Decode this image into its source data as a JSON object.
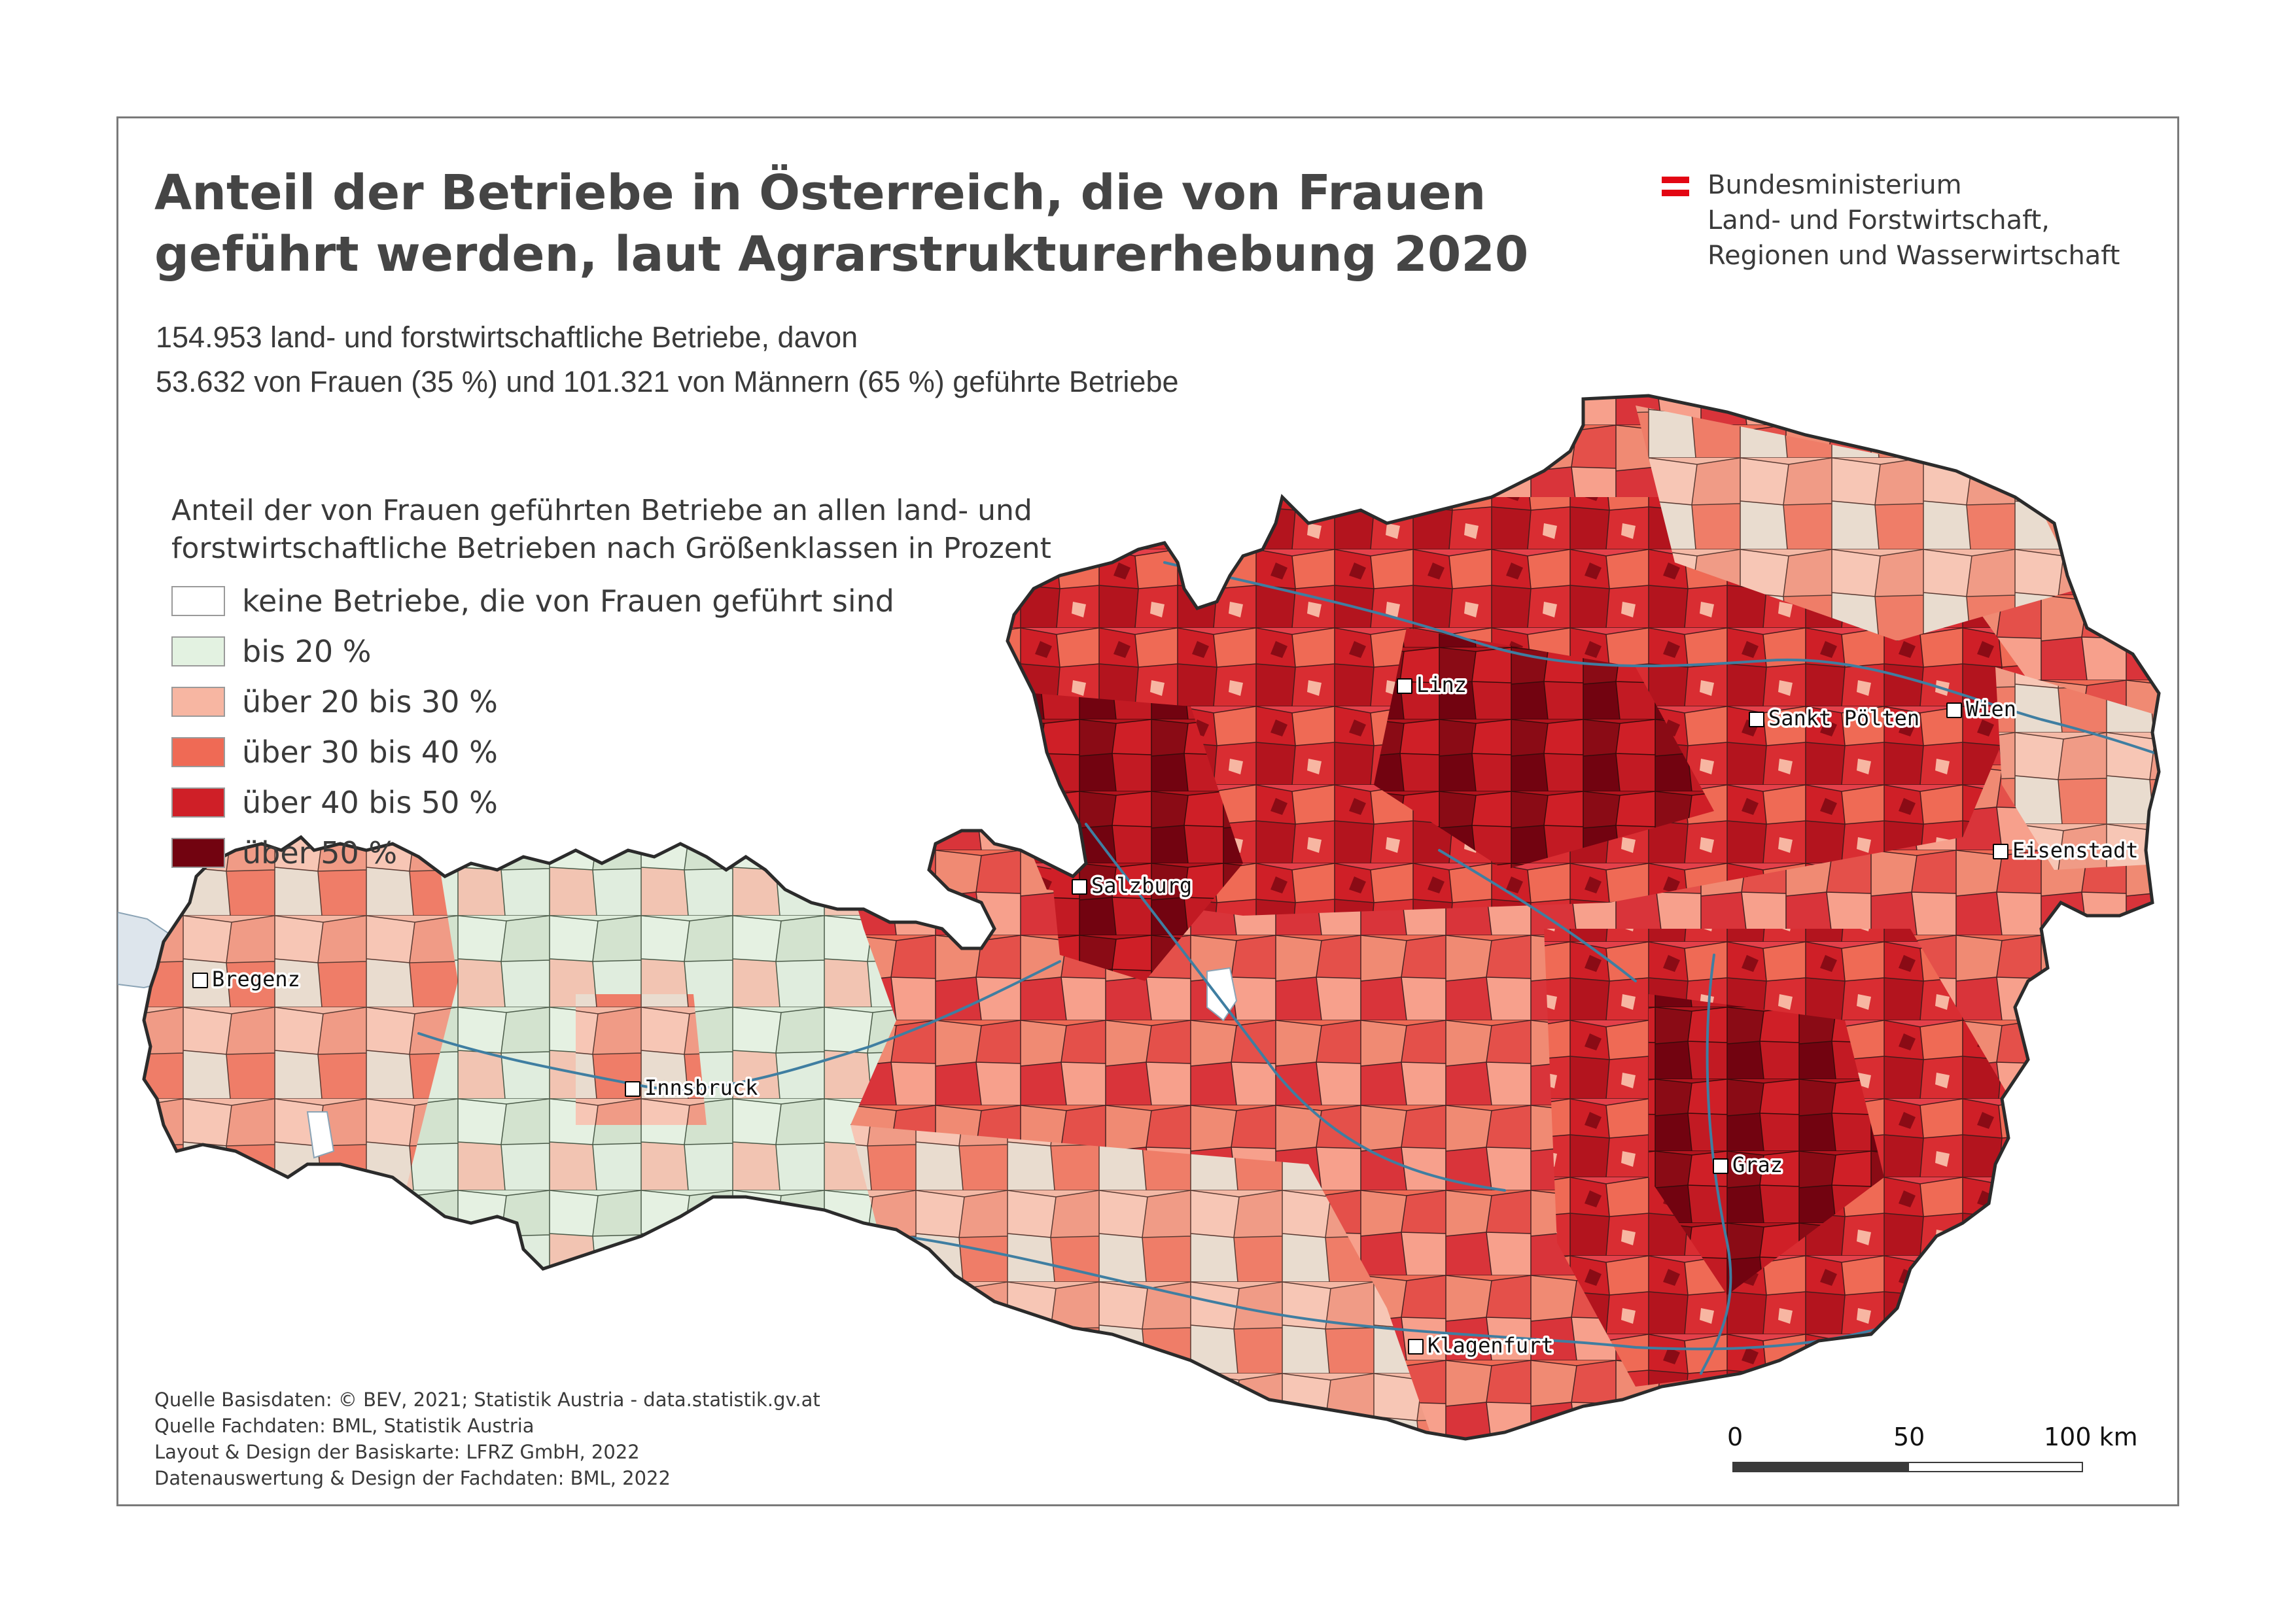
{
  "title_lines": [
    "Anteil der Betriebe in Österreich, die von Frauen",
    "geführt werden, laut Agrarstrukturerhebung 2020"
  ],
  "subtitle_lines": [
    "154.953 land- und forstwirtschaftliche Betriebe, davon",
    "53.632 von Frauen (35 %) und 101.321 von Männern (65 %) geführte Betriebe"
  ],
  "ministry": {
    "lines": [
      "Bundesministerium",
      "Land- und Forstwirtschaft,",
      "Regionen und Wasserwirtschaft"
    ],
    "flag_colors": [
      "#e30613",
      "#ffffff",
      "#e30613"
    ]
  },
  "legend": {
    "title_lines": [
      "Anteil der von Frauen geführten Betriebe an allen land- und",
      "forstwirtschaftliche Betrieben nach Größenklassen in Prozent"
    ],
    "classes": [
      {
        "label": "keine Betriebe, die von Frauen geführt sind",
        "color": "#ffffff"
      },
      {
        "label": "bis 20 %",
        "color": "#e3f2e1"
      },
      {
        "label": "über 20 bis 30 %",
        "color": "#f7b6a2"
      },
      {
        "label": "über 30 bis 40 %",
        "color": "#ef6a55"
      },
      {
        "label": "über 40 bis 50 %",
        "color": "#cf1f27"
      },
      {
        "label": "über 50 %",
        "color": "#720310"
      }
    ]
  },
  "cities": [
    "Bregenz",
    "Innsbruck",
    "Salzburg",
    "Linz",
    "Sankt Pölten",
    "Wien",
    "Eisenstadt",
    "Graz",
    "Klagenfurt"
  ],
  "credits": [
    "Quelle Basisdaten: © BEV, 2021; Statistik Austria - data.statistik.gv.at",
    "Quelle Fachdaten: BML, Statistik Austria",
    "Layout & Design der Basiskarte: LFRZ GmbH, 2022",
    "Datenauswertung & Design der Fachdaten: BML, 2022"
  ],
  "scalebar": {
    "ticks": [
      "0",
      "50",
      "100 km"
    ]
  },
  "colors": {
    "lake": "#dde5ec",
    "river": "#3f7ea1",
    "border": "#2b2b2b"
  }
}
